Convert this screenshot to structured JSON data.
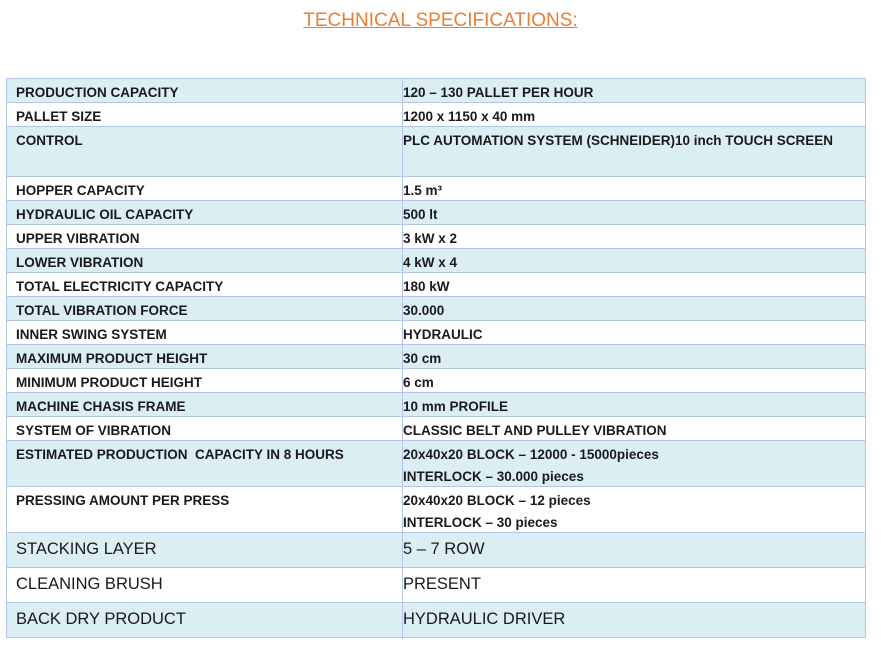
{
  "header": {
    "title": "TECHNICAL SPECIFICATIONS:"
  },
  "table": {
    "rows": [
      [
        "PRODUCTION CAPACITY",
        "120 – 130 PALLET PER HOUR"
      ],
      [
        "PALLET SIZE",
        "1200 x 1150 x 40 mm"
      ],
      [
        "CONTROL",
        "PLC AUTOMATION SYSTEM (SCHNEIDER)10 inch TOUCH SCREEN"
      ],
      [
        "HOPPER CAPACITY",
        "1.5 m³"
      ],
      [
        "HYDRAULIC OIL CAPACITY",
        "500 lt"
      ],
      [
        "UPPER VIBRATION",
        "3 kW x 2"
      ],
      [
        "LOWER VIBRATION",
        "4 kW x 4"
      ],
      [
        "TOTAL ELECTRICITY CAPACITY",
        "180 kW"
      ],
      [
        "TOTAL VIBRATION FORCE",
        "30.000"
      ],
      [
        "INNER SWING SYSTEM",
        "HYDRAULIC"
      ],
      [
        "MAXIMUM PRODUCT HEIGHT",
        "30 cm"
      ],
      [
        "MINIMUM PRODUCT HEIGHT",
        "6 cm"
      ],
      [
        "MACHINE CHASIS FRAME",
        "10 mm PROFILE"
      ],
      [
        "SYSTEM OF VIBRATION",
        "CLASSIC BELT AND PULLEY VIBRATION"
      ],
      [
        "ESTIMATED PRODUCTION  CAPACITY IN 8 HOURS",
        [
          "20x40x20 BLOCK – 12000 - 15000pieces",
          "INTERLOCK – 30.000 pieces"
        ]
      ],
      [
        "PRESSING AMOUNT PER PRESS",
        [
          "20x40x20 BLOCK – 12 pieces",
          "INTERLOCK – 30 pieces"
        ]
      ],
      [
        "STACKING LAYER",
        "5 – 7 ROW"
      ],
      [
        "CLEANING BRUSH",
        "PRESENT"
      ],
      [
        "BACK DRY PRODUCT",
        "HYDRAULIC DRIVER"
      ]
    ]
  }
}
